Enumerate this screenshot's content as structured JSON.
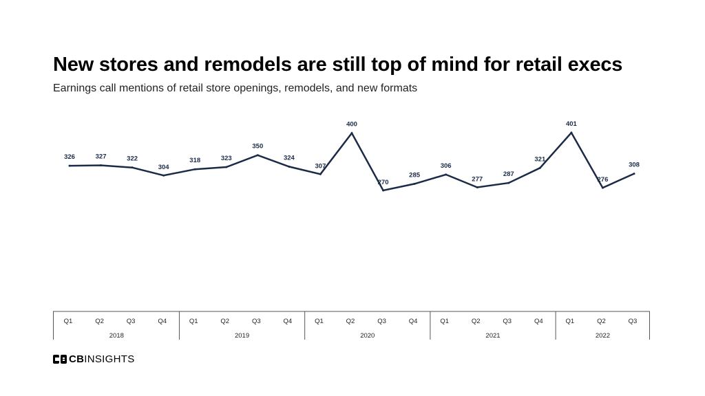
{
  "header": {
    "title": "New stores and remodels are still top of mind for retail execs",
    "subtitle": "Earnings call mentions of retail store openings, remodels, and new formats"
  },
  "chart_data": {
    "type": "line",
    "title": "New stores and remodels are still top of mind for retail execs",
    "subtitle": "Earnings call mentions of retail store openings, remodels, and new formats",
    "xlabel": "",
    "ylabel": "",
    "grid": false,
    "ylim": [
      0,
      420
    ],
    "categories": [
      "Q1",
      "Q2",
      "Q3",
      "Q4",
      "Q1",
      "Q2",
      "Q3",
      "Q4",
      "Q1",
      "Q2",
      "Q3",
      "Q4",
      "Q1",
      "Q2",
      "Q3",
      "Q4",
      "Q1",
      "Q2",
      "Q3"
    ],
    "years": [
      {
        "label": "2018",
        "quarters": 4
      },
      {
        "label": "2019",
        "quarters": 4
      },
      {
        "label": "2020",
        "quarters": 4
      },
      {
        "label": "2021",
        "quarters": 4
      },
      {
        "label": "2022",
        "quarters": 3
      }
    ],
    "series": [
      {
        "name": "Earnings call mentions",
        "color": "#1b2a47",
        "values": [
          326,
          327,
          322,
          304,
          318,
          323,
          350,
          324,
          307,
          400,
          270,
          285,
          306,
          277,
          287,
          321,
          401,
          276,
          308
        ]
      }
    ]
  },
  "footer": {
    "logo_bold": "CB",
    "logo_light": "INSIGHTS"
  }
}
